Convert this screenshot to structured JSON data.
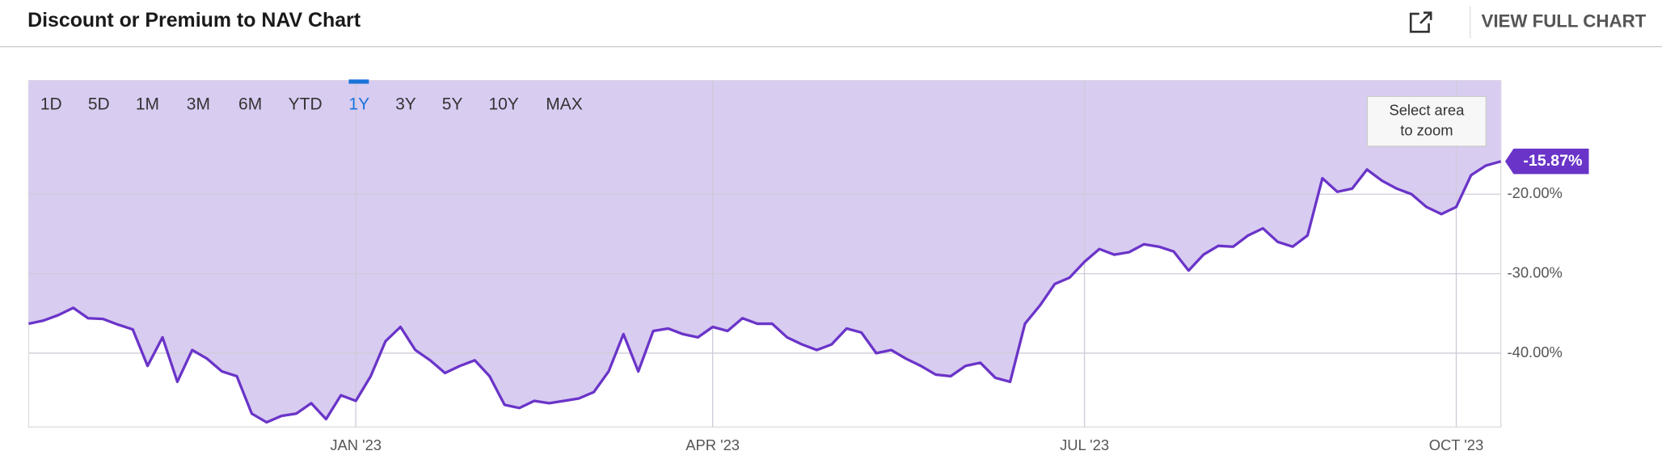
{
  "header": {
    "title": "Discount or Premium to NAV Chart",
    "action": "VIEW FULL CHART"
  },
  "range_buttons": [
    "1D",
    "5D",
    "1M",
    "3M",
    "6M",
    "YTD",
    "1Y",
    "3Y",
    "5Y",
    "10Y",
    "MAX"
  ],
  "selected_range": "1Y",
  "zoom_hint": [
    "Select area",
    "to zoom"
  ],
  "chart_data": {
    "type": "area-line",
    "categories": [
      null,
      null,
      null,
      null,
      null,
      null,
      null,
      null,
      null,
      null,
      null,
      null,
      null,
      null,
      null,
      null,
      null,
      null,
      null,
      null,
      null,
      null,
      "JAN '23",
      null,
      null,
      null,
      null,
      null,
      null,
      null,
      null,
      null,
      null,
      null,
      null,
      null,
      null,
      null,
      null,
      null,
      null,
      null,
      null,
      null,
      null,
      null,
      "APR '23",
      null,
      null,
      null,
      null,
      null,
      null,
      null,
      null,
      null,
      null,
      null,
      null,
      null,
      null,
      null,
      null,
      null,
      null,
      null,
      null,
      null,
      null,
      null,
      null,
      "JUL '23",
      null,
      null,
      null,
      null,
      null,
      null,
      null,
      null,
      null,
      null,
      null,
      null,
      null,
      null,
      null,
      null,
      null,
      null,
      null,
      null,
      null,
      null,
      null,
      null,
      "OCT '23",
      null,
      null,
      null
    ],
    "values": [
      -36.3,
      -35.9,
      -35.2,
      -34.3,
      -35.6,
      -35.7,
      -36.4,
      -37.0,
      -41.6,
      -38.0,
      -43.6,
      -39.6,
      -40.7,
      -42.3,
      -42.9,
      -47.6,
      -48.7,
      -47.9,
      -47.6,
      -46.3,
      -48.3,
      -45.3,
      -46.0,
      -42.9,
      -38.5,
      -36.7,
      -39.6,
      -40.9,
      -42.5,
      -41.6,
      -40.9,
      -42.9,
      -46.5,
      -46.9,
      -46.0,
      -46.3,
      -46.0,
      -45.7,
      -44.9,
      -42.3,
      -37.6,
      -42.3,
      -37.2,
      -36.9,
      -37.6,
      -38.0,
      -36.7,
      -37.2,
      -35.6,
      -36.3,
      -36.3,
      -38.0,
      -38.9,
      -39.6,
      -38.9,
      -36.9,
      -37.4,
      -40.0,
      -39.6,
      -40.7,
      -41.6,
      -42.7,
      -42.9,
      -41.6,
      -41.2,
      -43.1,
      -43.6,
      -36.3,
      -34.0,
      -31.3,
      -30.5,
      -28.5,
      -26.9,
      -27.6,
      -27.3,
      -26.3,
      -26.6,
      -27.2,
      -29.6,
      -27.6,
      -26.5,
      -26.6,
      -25.2,
      -24.3,
      -26.0,
      -26.6,
      -25.2,
      -18.0,
      -19.7,
      -19.3,
      -16.9,
      -18.3,
      -19.3,
      -20.0,
      -21.6,
      -22.5,
      -21.6,
      -17.6,
      -16.4,
      -15.87
    ],
    "value_labels": [
      null,
      null,
      null,
      null,
      null,
      null,
      null,
      null,
      null,
      null,
      null,
      null,
      null,
      null,
      null,
      null,
      null,
      null,
      null,
      null,
      null,
      null,
      null,
      null,
      null,
      null,
      null,
      null,
      null,
      null,
      null,
      null,
      null,
      null,
      null,
      null,
      null,
      null,
      null,
      null,
      null,
      null,
      null,
      null,
      null,
      null,
      null,
      null,
      null,
      null,
      null,
      null,
      null,
      null,
      null,
      null,
      null,
      null,
      null,
      null,
      null,
      null,
      null,
      null,
      null,
      null,
      null,
      null,
      null,
      null,
      null,
      null,
      null,
      null,
      null,
      null,
      null,
      null,
      null,
      null,
      null,
      null,
      null,
      null,
      null,
      null,
      null,
      null,
      null,
      null,
      null,
      null,
      null,
      null,
      null,
      null,
      null,
      null,
      null,
      "-15.87%"
    ],
    "color": "#6a34c8",
    "fill_color": "#d8ccf1",
    "ylim": [
      -49.3,
      -5.7
    ],
    "yticks": [
      {
        "value": -20,
        "label": "-20.00%"
      },
      {
        "value": -30,
        "label": "-30.00%"
      },
      {
        "value": -40,
        "label": "-40.00%"
      }
    ],
    "grid": true
  }
}
